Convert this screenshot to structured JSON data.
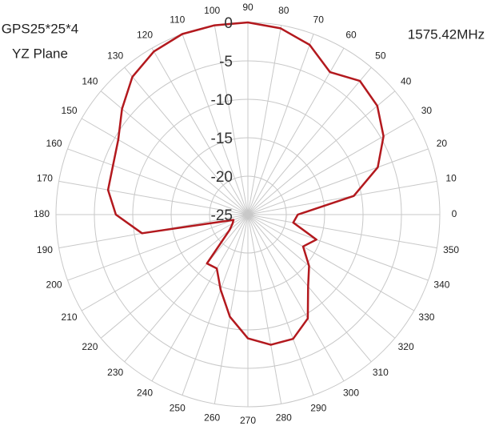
{
  "chart_data": {
    "type": "radar",
    "title": "GPS25*25*4",
    "subtitle": "YZ Plane",
    "annotation": "1575.42MHz",
    "theta": [
      0,
      10,
      20,
      30,
      40,
      50,
      60,
      70,
      80,
      90,
      100,
      110,
      120,
      130,
      140,
      150,
      160,
      170,
      180,
      190,
      200,
      210,
      220,
      230,
      240,
      250,
      260,
      270,
      280,
      290,
      300,
      310,
      320,
      330,
      340,
      350
    ],
    "values": [
      -18.5,
      -11,
      -7,
      -4.6,
      -3,
      -2.3,
      -3.6,
      -1.5,
      -0.4,
      0,
      0,
      0,
      -0.5,
      -1.6,
      -3.6,
      -5.5,
      -6.3,
      -6.5,
      -7.8,
      -11,
      -23,
      -22.7,
      -21.9,
      -16.7,
      -16.9,
      -14.6,
      -11.5,
      -8.9,
      -7.8,
      -7.8,
      -9.4,
      -12.8,
      -14.6,
      -16.7,
      -15.5,
      -19
    ],
    "color": "#b3191e",
    "rlim": [
      -25,
      0
    ],
    "rticks": [
      -25,
      -20,
      -15,
      -10,
      -5,
      0
    ],
    "grid": true
  }
}
